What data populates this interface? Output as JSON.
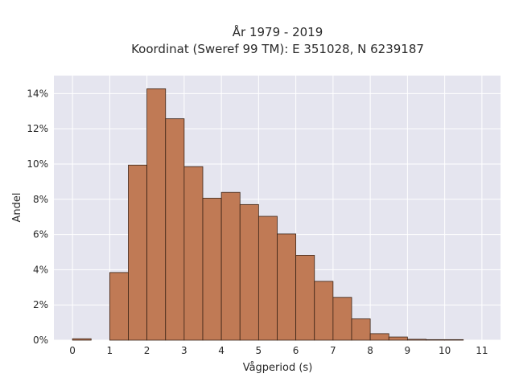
{
  "chart_data": {
    "type": "bar",
    "title_line1": "År 1979 - 2019",
    "title_line2": "Koordinat (Sweref 99 TM): E 351028, N 6239187",
    "xlabel": "Vågperiod (s)",
    "ylabel": "Andel",
    "bin_width": 0.5,
    "bins": [
      {
        "x0": 0.0,
        "value": 0.0008
      },
      {
        "x0": 0.5,
        "value": 0.0
      },
      {
        "x0": 1.0,
        "value": 0.0384
      },
      {
        "x0": 1.5,
        "value": 0.0994
      },
      {
        "x0": 2.0,
        "value": 0.1427
      },
      {
        "x0": 2.5,
        "value": 0.1257
      },
      {
        "x0": 3.0,
        "value": 0.0985
      },
      {
        "x0": 3.5,
        "value": 0.0806
      },
      {
        "x0": 4.0,
        "value": 0.0839
      },
      {
        "x0": 4.5,
        "value": 0.077
      },
      {
        "x0": 5.0,
        "value": 0.0703
      },
      {
        "x0": 5.5,
        "value": 0.0603
      },
      {
        "x0": 6.0,
        "value": 0.0482
      },
      {
        "x0": 6.5,
        "value": 0.0334
      },
      {
        "x0": 7.0,
        "value": 0.0243
      },
      {
        "x0": 7.5,
        "value": 0.0121
      },
      {
        "x0": 8.0,
        "value": 0.0037
      },
      {
        "x0": 8.5,
        "value": 0.0018
      },
      {
        "x0": 9.0,
        "value": 0.0005
      },
      {
        "x0": 9.5,
        "value": 0.0003
      },
      {
        "x0": 10.0,
        "value": 0.0003
      }
    ],
    "x_ticks": [
      0,
      1,
      2,
      3,
      4,
      5,
      6,
      7,
      8,
      9,
      10,
      11
    ],
    "y_ticks": [
      0,
      0.02,
      0.04,
      0.06,
      0.08,
      0.1,
      0.12,
      0.14
    ],
    "y_tick_labels": [
      "0%",
      "2%",
      "4%",
      "6%",
      "8%",
      "10%",
      "12%",
      "14%"
    ],
    "xlim": [
      -0.5,
      11.5
    ],
    "ylim": [
      0,
      0.1502
    ],
    "grid": true,
    "colors": {
      "plot_bg": "#e5e5ef",
      "grid": "#ffffff",
      "bar_fill": "#c07a55",
      "bar_stroke": "#3b2416"
    }
  }
}
